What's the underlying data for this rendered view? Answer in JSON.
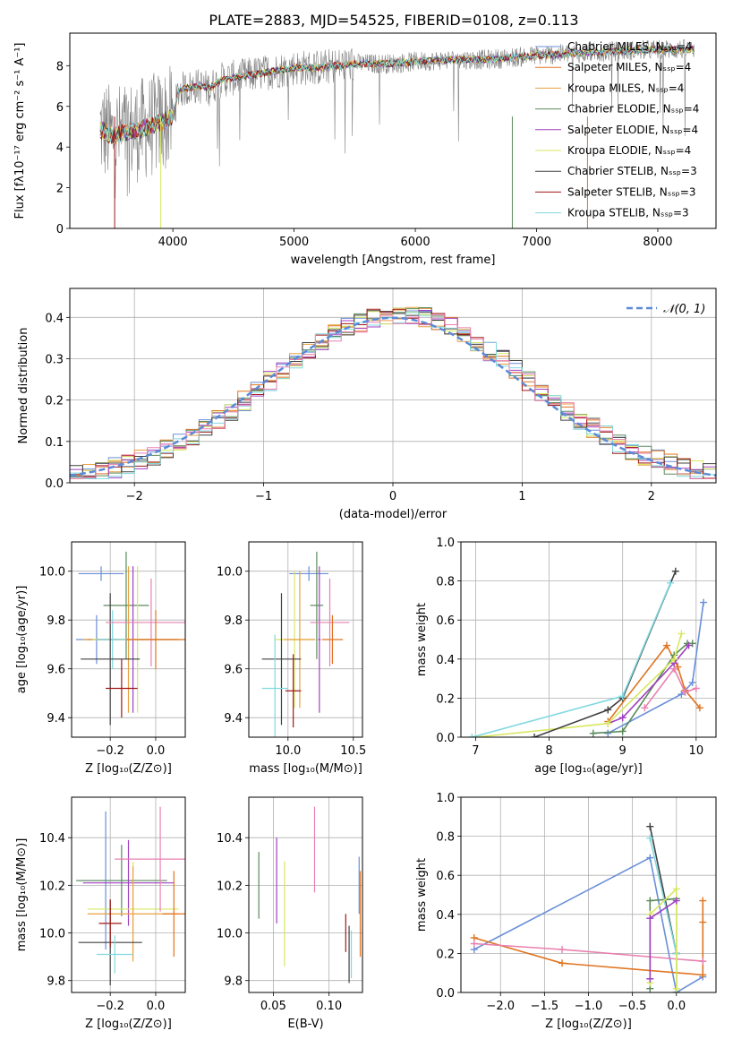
{
  "figure": {
    "title": "PLATE=2883, MJD=54525, FIBERID=0108, z=0.113"
  },
  "colors": {
    "chabrier_miles": "#6a8fd8",
    "salpeter_miles": "#e07420",
    "kroupa_miles": "#e8a040",
    "chabrier_elodie": "#5a8a5a",
    "salpeter_elodie": "#a040c0",
    "kroupa_elodie": "#d8e860",
    "chabrier_stelib": "#404040",
    "salpeter_stelib": "#a01818",
    "kroupa_stelib": "#80d8e0",
    "pink": "#e880b0",
    "grid": "#b0b0b0",
    "gaussian": "#5a8ad8"
  },
  "chart_data": [
    {
      "id": "spectrum",
      "type": "line",
      "title": "PLATE=2883, MJD=54525, FIBERID=0108, z=0.113",
      "xlabel": "wavelength [Angstrom, rest frame]",
      "ylabel": "Flux [fλ10⁻¹⁷ erg cm⁻² s⁻¹ A⁻¹]",
      "xlim": [
        3150,
        8480
      ],
      "ylim": [
        0,
        9.6
      ],
      "xticks": [
        4000,
        5000,
        6000,
        7000,
        8000
      ],
      "yticks": [
        0,
        2,
        4,
        6,
        8
      ],
      "legend_position": "upper-right",
      "legend": [
        "Chabrier MILES, Nₛₛₚ=4",
        "Salpeter MILES, Nₛₛₚ=4",
        "Kroupa MILES, Nₛₛₚ=4",
        "Chabrier ELODIE, Nₛₛₚ=4",
        "Salpeter ELODIE, Nₛₛₚ=4",
        "Kroupa ELODIE, Nₛₛₚ=4",
        "Chabrier STELIB, Nₛₛₚ=3",
        "Salpeter STELIB, Nₛₛₚ=3",
        "Kroupa STELIB, Nₛₛₚ=3"
      ],
      "continuum": {
        "x": [
          3400,
          3500,
          3600,
          3700,
          3800,
          3900,
          4000,
          4050,
          4200,
          4300,
          4400,
          4500,
          4600,
          4800,
          5000,
          5200,
          5500,
          5800,
          6000,
          6300,
          6600,
          7000,
          7300,
          7600,
          8000,
          8300
        ],
        "y": [
          4.9,
          4.5,
          4.7,
          4.8,
          5.0,
          5.2,
          5.5,
          6.8,
          7.0,
          6.9,
          7.3,
          7.4,
          7.5,
          7.7,
          7.9,
          7.9,
          8.1,
          8.1,
          8.2,
          8.3,
          8.3,
          8.5,
          8.6,
          8.7,
          8.8,
          8.8
        ]
      }
    },
    {
      "id": "residuals",
      "type": "histogram",
      "xlabel": "(data-model)/error",
      "ylabel": "Normed distribution",
      "xlim": [
        -2.5,
        2.5
      ],
      "ylim": [
        0,
        0.47
      ],
      "xticks": [
        -2,
        -1,
        0,
        1,
        2
      ],
      "yticks": [
        0.0,
        0.1,
        0.2,
        0.3,
        0.4
      ],
      "legend": [
        "𝒩(0, 1)"
      ],
      "gaussian": {
        "mean": 0,
        "sigma": 1
      }
    },
    {
      "id": "age_vs_Z",
      "type": "errorbar",
      "xlabel": "Z [log₁₀(Z/Z⊙)]",
      "ylabel": "age  [log₁₀(age/yr)]",
      "xlim": [
        -0.37,
        0.13
      ],
      "ylim": [
        9.32,
        10.12
      ],
      "xticks": [
        -0.2,
        0.0
      ],
      "yticks": [
        9.4,
        9.6,
        9.8,
        10.0
      ],
      "points": [
        {
          "x": -0.24,
          "xerr": 0.1,
          "y": 9.99,
          "yerr": 0.03,
          "color": "#6a8fd8"
        },
        {
          "x": -0.26,
          "xerr": 0.09,
          "y": 9.72,
          "yerr": 0.1,
          "color": "#6a8fd8"
        },
        {
          "x": -0.13,
          "xerr": 0.1,
          "y": 9.86,
          "yerr": 0.22,
          "color": "#5a8a5a"
        },
        {
          "x": -0.1,
          "xerr": 0.2,
          "y": 9.72,
          "yerr": 0.3,
          "color": "#a040c0"
        },
        {
          "x": -0.12,
          "xerr": 0.2,
          "y": 9.72,
          "yerr": 0.3,
          "color": "#e8a040"
        },
        {
          "x": -0.08,
          "xerr": 0.2,
          "y": 9.72,
          "yerr": 0.3,
          "color": "#d8e860"
        },
        {
          "x": -0.19,
          "xerr": 0.07,
          "y": 9.72,
          "yerr": 0.12,
          "color": "#80d8e0"
        },
        {
          "x": -0.2,
          "xerr": 0.13,
          "y": 9.64,
          "yerr": 0.27,
          "color": "#404040"
        },
        {
          "x": -0.15,
          "xerr": 0.07,
          "y": 9.52,
          "yerr": 0.12,
          "color": "#a01818"
        },
        {
          "x": -0.02,
          "xerr": 0.2,
          "y": 9.79,
          "yerr": 0.18,
          "color": "#e880b0"
        },
        {
          "x": 0.0,
          "xerr": 0.13,
          "y": 9.72,
          "yerr": 0.12,
          "color": "#e07420"
        }
      ]
    },
    {
      "id": "age_vs_mass",
      "type": "errorbar",
      "xlabel": "mass [log₁₀(M/M⊙)]",
      "ylabel": "",
      "xlim": [
        9.7,
        10.57
      ],
      "ylim": [
        9.32,
        10.12
      ],
      "xticks": [
        10.0,
        10.5
      ],
      "yticks": [
        9.4,
        9.6,
        9.8,
        10.0
      ],
      "points": [
        {
          "x": 10.16,
          "xerr": 0.15,
          "y": 9.99,
          "yerr": 0.03,
          "color": "#6a8fd8"
        },
        {
          "x": 10.22,
          "xerr": 0.05,
          "y": 9.86,
          "yerr": 0.22,
          "color": "#5a8a5a"
        },
        {
          "x": 10.24,
          "xerr": 0.01,
          "y": 9.72,
          "yerr": 0.3,
          "color": "#a040c0"
        },
        {
          "x": 10.05,
          "xerr": 0.15,
          "y": 9.72,
          "yerr": 0.28,
          "color": "#d8e860"
        },
        {
          "x": 10.09,
          "xerr": 0.12,
          "y": 9.72,
          "yerr": 0.28,
          "color": "#e8a040"
        },
        {
          "x": 9.95,
          "xerr": 0.15,
          "y": 9.64,
          "yerr": 0.27,
          "color": "#404040"
        },
        {
          "x": 9.9,
          "xerr": 0.1,
          "y": 9.52,
          "yerr": 0.22,
          "color": "#80d8e0"
        },
        {
          "x": 10.04,
          "xerr": 0.06,
          "y": 9.51,
          "yerr": 0.15,
          "color": "#a01818"
        },
        {
          "x": 10.32,
          "xerr": 0.15,
          "y": 9.79,
          "yerr": 0.18,
          "color": "#e880b0"
        },
        {
          "x": 10.34,
          "xerr": 0.08,
          "y": 9.72,
          "yerr": 0.1,
          "color": "#e07420"
        }
      ]
    },
    {
      "id": "weight_vs_age",
      "type": "line",
      "xlabel": "age  [log₁₀(age/yr)]",
      "ylabel": "mass weight",
      "xlim": [
        6.8,
        10.27
      ],
      "ylim": [
        0,
        1.0
      ],
      "xticks": [
        7,
        8,
        9,
        10
      ],
      "yticks": [
        0.0,
        0.2,
        0.4,
        0.6,
        0.8,
        1.0
      ],
      "series": [
        {
          "color": "#6a8fd8",
          "x": [
            8.8,
            9.8,
            9.95,
            10.1
          ],
          "y": [
            0.02,
            0.22,
            0.28,
            0.69
          ]
        },
        {
          "color": "#e07420",
          "x": [
            8.8,
            9.6,
            9.75,
            9.85,
            10.05
          ],
          "y": [
            0.08,
            0.47,
            0.36,
            0.24,
            0.15
          ]
        },
        {
          "color": "#e880b0",
          "x": [
            9.3,
            9.7,
            9.85,
            10.0
          ],
          "y": [
            0.15,
            0.35,
            0.23,
            0.25
          ]
        },
        {
          "color": "#5a8a5a",
          "x": [
            8.6,
            9.0,
            9.7,
            9.88,
            9.95
          ],
          "y": [
            0.02,
            0.03,
            0.42,
            0.48,
            0.48
          ]
        },
        {
          "color": "#a040c0",
          "x": [
            8.8,
            9.0,
            9.7,
            9.9
          ],
          "y": [
            0.07,
            0.1,
            0.38,
            0.47
          ]
        },
        {
          "color": "#d8e860",
          "x": [
            7.0,
            8.8,
            9.7,
            9.8
          ],
          "y": [
            0.0,
            0.07,
            0.4,
            0.53
          ]
        },
        {
          "color": "#404040",
          "x": [
            7.8,
            8.8,
            9.0,
            9.72
          ],
          "y": [
            0.0,
            0.14,
            0.2,
            0.85
          ]
        },
        {
          "color": "#80d8e0",
          "x": [
            6.95,
            9.0,
            9.65
          ],
          "y": [
            0.0,
            0.21,
            0.79
          ]
        }
      ]
    },
    {
      "id": "mass_vs_Z",
      "type": "errorbar",
      "xlabel": "Z [log₁₀(Z/Z⊙)]",
      "ylabel": "mass [log₁₀(M/M⊙)]",
      "xlim": [
        -0.37,
        0.13
      ],
      "ylim": [
        9.75,
        10.57
      ],
      "xticks": [
        -0.2,
        0.0
      ],
      "yticks": [
        9.8,
        10.0,
        10.2,
        10.4
      ],
      "points": [
        {
          "x": -0.22,
          "xerr": 0.12,
          "y": 10.22,
          "yerr": 0.29,
          "color": "#6a8fd8"
        },
        {
          "x": -0.15,
          "xerr": 0.2,
          "y": 10.22,
          "yerr": 0.15,
          "color": "#5a8a5a"
        },
        {
          "x": -0.12,
          "xerr": 0.2,
          "y": 10.21,
          "yerr": 0.18,
          "color": "#a040c0"
        },
        {
          "x": -0.1,
          "xerr": 0.2,
          "y": 10.1,
          "yerr": 0.2,
          "color": "#d8e860"
        },
        {
          "x": -0.1,
          "xerr": 0.2,
          "y": 10.08,
          "yerr": 0.2,
          "color": "#e8a040"
        },
        {
          "x": -0.2,
          "xerr": 0.14,
          "y": 9.96,
          "yerr": 0.18,
          "color": "#404040"
        },
        {
          "x": -0.18,
          "xerr": 0.08,
          "y": 9.91,
          "yerr": 0.08,
          "color": "#80d8e0"
        },
        {
          "x": -0.2,
          "xerr": 0.05,
          "y": 10.04,
          "yerr": 0.1,
          "color": "#a01818"
        },
        {
          "x": 0.02,
          "xerr": 0.2,
          "y": 10.31,
          "yerr": 0.22,
          "color": "#e880b0"
        },
        {
          "x": 0.08,
          "xerr": 0.05,
          "y": 10.08,
          "yerr": 0.18,
          "color": "#e07420"
        }
      ]
    },
    {
      "id": "mass_vs_ebv",
      "type": "errorbar",
      "xlabel": "E(B-V)",
      "ylabel": "",
      "xlim": [
        0.028,
        0.13
      ],
      "ylim": [
        9.75,
        10.57
      ],
      "xticks": [
        0.05,
        0.1
      ],
      "yticks": [
        9.8,
        10.0,
        10.2,
        10.4
      ],
      "points": [
        {
          "x": 0.037,
          "y": 10.2,
          "yerr": 0.14,
          "color": "#5a8a5a"
        },
        {
          "x": 0.053,
          "y": 10.22,
          "yerr": 0.18,
          "color": "#a040c0"
        },
        {
          "x": 0.06,
          "y": 10.08,
          "yerr": 0.22,
          "color": "#d8e860"
        },
        {
          "x": 0.087,
          "y": 10.35,
          "yerr": 0.18,
          "color": "#e880b0"
        },
        {
          "x": 0.115,
          "y": 10.0,
          "yerr": 0.08,
          "color": "#a01818"
        },
        {
          "x": 0.118,
          "y": 9.91,
          "yerr": 0.12,
          "color": "#404040"
        },
        {
          "x": 0.12,
          "y": 9.91,
          "yerr": 0.1,
          "color": "#80d8e0"
        },
        {
          "x": 0.127,
          "y": 10.2,
          "yerr": 0.12,
          "color": "#6a8fd8"
        },
        {
          "x": 0.128,
          "y": 10.08,
          "yerr": 0.18,
          "color": "#e07420"
        }
      ]
    },
    {
      "id": "weight_vs_Z",
      "type": "line",
      "xlabel": "Z [log₁₀(Z/Z⊙)]",
      "ylabel": "mass weight",
      "xlim": [
        -2.45,
        0.45
      ],
      "ylim": [
        0,
        1.0
      ],
      "xticks": [
        -2.0,
        -1.5,
        -1.0,
        -0.5,
        0.0
      ],
      "yticks": [
        0.0,
        0.2,
        0.4,
        0.6,
        0.8,
        1.0
      ],
      "series": [
        {
          "color": "#6a8fd8",
          "x": [
            -2.3,
            -0.3,
            0.0,
            0.3
          ],
          "y": [
            0.22,
            0.69,
            0.0,
            0.08
          ]
        },
        {
          "color": "#e07420",
          "x": [
            -2.3,
            -1.3,
            0.3,
            0.3,
            0.3
          ],
          "y": [
            0.28,
            0.15,
            0.09,
            0.36,
            0.47
          ]
        },
        {
          "color": "#e880b0",
          "x": [
            -2.3,
            -1.3,
            0.3
          ],
          "y": [
            0.25,
            0.22,
            0.16
          ]
        },
        {
          "color": "#5a8a5a",
          "x": [
            -0.3,
            -0.3,
            0.0,
            0.0
          ],
          "y": [
            0.02,
            0.47,
            0.48,
            0.2
          ]
        },
        {
          "color": "#404040",
          "x": [
            -0.3,
            0.0,
            0.0
          ],
          "y": [
            0.85,
            0.2,
            0.0
          ]
        },
        {
          "color": "#80d8e0",
          "x": [
            -0.3,
            0.0,
            0.0
          ],
          "y": [
            0.79,
            0.2,
            0.0
          ]
        },
        {
          "color": "#d8e860",
          "x": [
            -0.3,
            -0.3,
            0.0,
            0.0
          ],
          "y": [
            0.05,
            0.4,
            0.53,
            0.02
          ]
        },
        {
          "color": "#a040c0",
          "x": [
            -0.3,
            -0.3,
            0.0
          ],
          "y": [
            0.07,
            0.38,
            0.47
          ]
        }
      ]
    }
  ]
}
